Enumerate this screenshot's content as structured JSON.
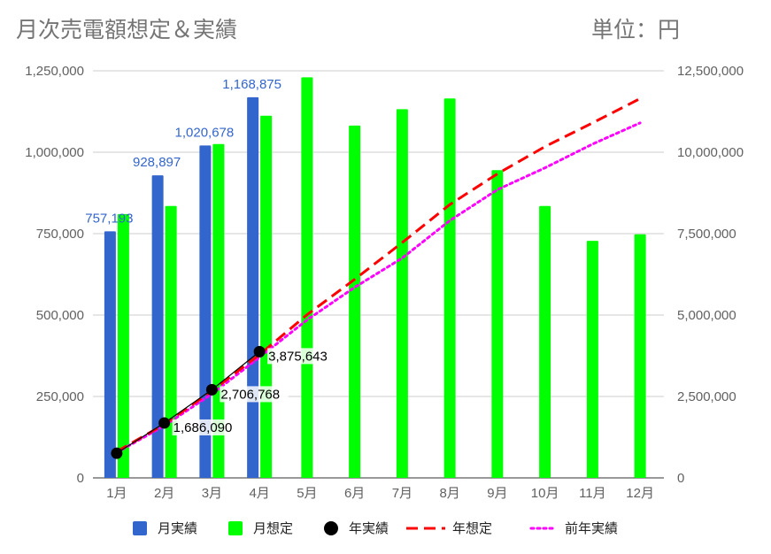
{
  "title": "月次売電額想定＆実績",
  "unit": "単位：円",
  "colors": {
    "monthly_actual": "#3366cc",
    "monthly_forecast": "#00ff00",
    "annual_actual": "#000000",
    "annual_forecast": "#ff0000",
    "previous_year": "#ff00ff",
    "grid": "#cccccc",
    "tick_text": "#616161",
    "label_blue": "#3366cc"
  },
  "chart_data": {
    "type": "bar",
    "categories": [
      "1月",
      "2月",
      "3月",
      "4月",
      "5月",
      "6月",
      "7月",
      "8月",
      "9月",
      "10月",
      "11月",
      "12月"
    ],
    "left_axis": {
      "ylim": [
        0,
        1250000
      ],
      "ticks": [
        0,
        250000,
        500000,
        750000,
        1000000,
        1250000
      ],
      "tick_labels": [
        "0",
        "250,000",
        "500,000",
        "750,000",
        "1,000,000",
        "1,250,000"
      ]
    },
    "right_axis": {
      "ylim": [
        0,
        12500000
      ],
      "ticks": [
        0,
        2500000,
        5000000,
        7500000,
        10000000,
        12500000
      ],
      "tick_labels": [
        "0",
        "2,500,000",
        "5,000,000",
        "7,500,000",
        "10,000,000",
        "12,500,000"
      ]
    },
    "grid": true,
    "legend_position": "bottom",
    "series": [
      {
        "name": "月実績",
        "kind": "bar",
        "axis": "left",
        "values": [
          757193,
          928897,
          1020678,
          1168875,
          null,
          null,
          null,
          null,
          null,
          null,
          null,
          null
        ],
        "data_labels": [
          "757,193",
          "928,897",
          "1,020,678",
          "1,168,875"
        ]
      },
      {
        "name": "月想定",
        "kind": "bar",
        "axis": "left",
        "values": [
          810000,
          835000,
          1025000,
          1112000,
          1230000,
          1082000,
          1132000,
          1165000,
          945000,
          835000,
          728000,
          748000
        ]
      },
      {
        "name": "年実績",
        "kind": "line-points",
        "axis": "right",
        "values": [
          757193,
          1686090,
          2706768,
          3875643,
          null,
          null,
          null,
          null,
          null,
          null,
          null,
          null
        ],
        "data_labels": [
          "",
          "1,686,090",
          "2,706,768",
          "3,875,643"
        ]
      },
      {
        "name": "年想定",
        "kind": "dashed-line",
        "axis": "right",
        "values": [
          810000,
          1645000,
          2670000,
          3782000,
          5012000,
          6094000,
          7226000,
          8391000,
          9336000,
          10171000,
          10899000,
          11647000
        ]
      },
      {
        "name": "前年実績",
        "kind": "dotted-line",
        "axis": "right",
        "values": [
          780000,
          1600000,
          2580000,
          3700000,
          4850000,
          5850000,
          6750000,
          7900000,
          8850000,
          9520000,
          10250000,
          10900000
        ]
      }
    ]
  },
  "legend": [
    {
      "label": "月実績",
      "shape": "square",
      "color": "#3366cc"
    },
    {
      "label": "月想定",
      "shape": "square",
      "color": "#00ff00"
    },
    {
      "label": "年実績",
      "shape": "circle",
      "color": "#000000"
    },
    {
      "label": "年想定",
      "shape": "dash",
      "color": "#ff0000"
    },
    {
      "label": "前年実績",
      "shape": "dot",
      "color": "#ff00ff"
    }
  ]
}
